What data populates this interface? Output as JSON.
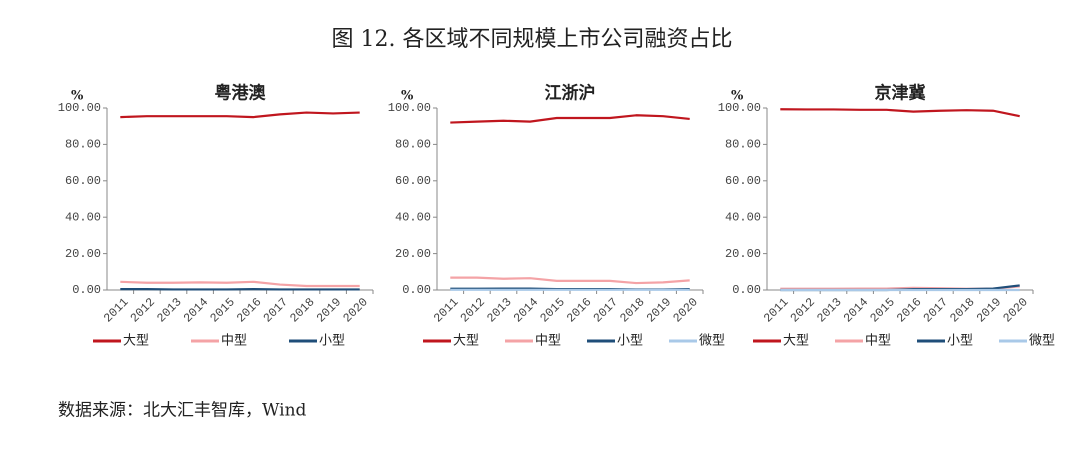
{
  "title": "图 12. 各区域不同规模上市公司融资占比",
  "source": "数据来源：北大汇丰智库，Wind",
  "chart_data": [
    {
      "type": "line",
      "title": "粤港澳",
      "y_label": "%",
      "categories": [
        "2011",
        "2012",
        "2013",
        "2014",
        "2015",
        "2016",
        "2017",
        "2018",
        "2019",
        "2020"
      ],
      "ylim": [
        0,
        100
      ],
      "yticks": [
        {
          "value": 0,
          "label": "0.00"
        },
        {
          "value": 20,
          "label": "20.00"
        },
        {
          "value": 40,
          "label": "40.00"
        },
        {
          "value": 60,
          "label": "60.00"
        },
        {
          "value": 80,
          "label": "80.00"
        },
        {
          "value": 100,
          "label": "100.00"
        }
      ],
      "series": [
        {
          "name": "大型",
          "color": "#c0161e",
          "values": [
            95,
            95.5,
            95.5,
            95.5,
            95.5,
            95,
            96.5,
            97.5,
            97,
            97.5
          ]
        },
        {
          "name": "中型",
          "color": "#f4a3a6",
          "values": [
            4.5,
            4,
            4,
            4.2,
            4,
            4.5,
            3,
            2.2,
            2.2,
            2.2
          ]
        },
        {
          "name": "小型",
          "color": "#1f4e79",
          "values": [
            0.5,
            0.5,
            0.3,
            0.3,
            0.3,
            0.5,
            0.3,
            0.3,
            0.3,
            0.3
          ]
        }
      ]
    },
    {
      "type": "line",
      "title": "江浙沪",
      "y_label": "%",
      "categories": [
        "2011",
        "2012",
        "2013",
        "2014",
        "2015",
        "2016",
        "2017",
        "2018",
        "2019",
        "2020"
      ],
      "ylim": [
        0,
        100
      ],
      "yticks": [
        {
          "value": 0,
          "label": "0.00"
        },
        {
          "value": 20,
          "label": "20.00"
        },
        {
          "value": 40,
          "label": "40.00"
        },
        {
          "value": 60,
          "label": "60.00"
        },
        {
          "value": 80,
          "label": "80.00"
        },
        {
          "value": 100,
          "label": "100.00"
        }
      ],
      "series": [
        {
          "name": "大型",
          "color": "#c0161e",
          "values": [
            92,
            92.5,
            93,
            92.5,
            94.5,
            94.5,
            94.5,
            96,
            95.5,
            94
          ]
        },
        {
          "name": "中型",
          "color": "#f4a3a6",
          "values": [
            6.8,
            6.8,
            6.2,
            6.5,
            5,
            5,
            5,
            3.8,
            4.2,
            5.3
          ]
        },
        {
          "name": "小型",
          "color": "#1f4e79",
          "values": [
            0.7,
            0.7,
            0.8,
            0.8,
            0.5,
            0.5,
            0.5,
            0.3,
            0.3,
            0.5
          ]
        },
        {
          "name": "微型",
          "color": "#a9c9e8",
          "values": [
            0.1,
            0.1,
            0.1,
            0.1,
            0.1,
            0.1,
            0.1,
            0.1,
            0.1,
            0.1
          ]
        }
      ]
    },
    {
      "type": "line",
      "title": "京津冀",
      "y_label": "%",
      "categories": [
        "2011",
        "2012",
        "2013",
        "2014",
        "2015",
        "2016",
        "2017",
        "2018",
        "2019",
        "2020"
      ],
      "ylim": [
        0,
        100
      ],
      "yticks": [
        {
          "value": 0,
          "label": "0.00"
        },
        {
          "value": 20,
          "label": "20.00"
        },
        {
          "value": 40,
          "label": "40.00"
        },
        {
          "value": 60,
          "label": "60.00"
        },
        {
          "value": 80,
          "label": "80.00"
        },
        {
          "value": 100,
          "label": "100.00"
        }
      ],
      "series": [
        {
          "name": "大型",
          "color": "#c0161e",
          "values": [
            99.3,
            99.2,
            99.2,
            99,
            99,
            98,
            98.5,
            98.8,
            98.5,
            95.5
          ]
        },
        {
          "name": "中型",
          "color": "#f4a3a6",
          "values": [
            0.7,
            0.7,
            0.7,
            0.8,
            0.8,
            1.2,
            1,
            0.7,
            0.7,
            2
          ]
        },
        {
          "name": "小型",
          "color": "#1f4e79",
          "values": [
            0,
            0,
            0,
            0,
            0,
            0.5,
            0.5,
            0.5,
            0.8,
            2.5
          ]
        },
        {
          "name": "微型",
          "color": "#a9c9e8",
          "values": [
            0,
            0,
            0,
            0,
            0,
            0,
            0,
            0,
            0,
            0
          ]
        }
      ]
    }
  ]
}
